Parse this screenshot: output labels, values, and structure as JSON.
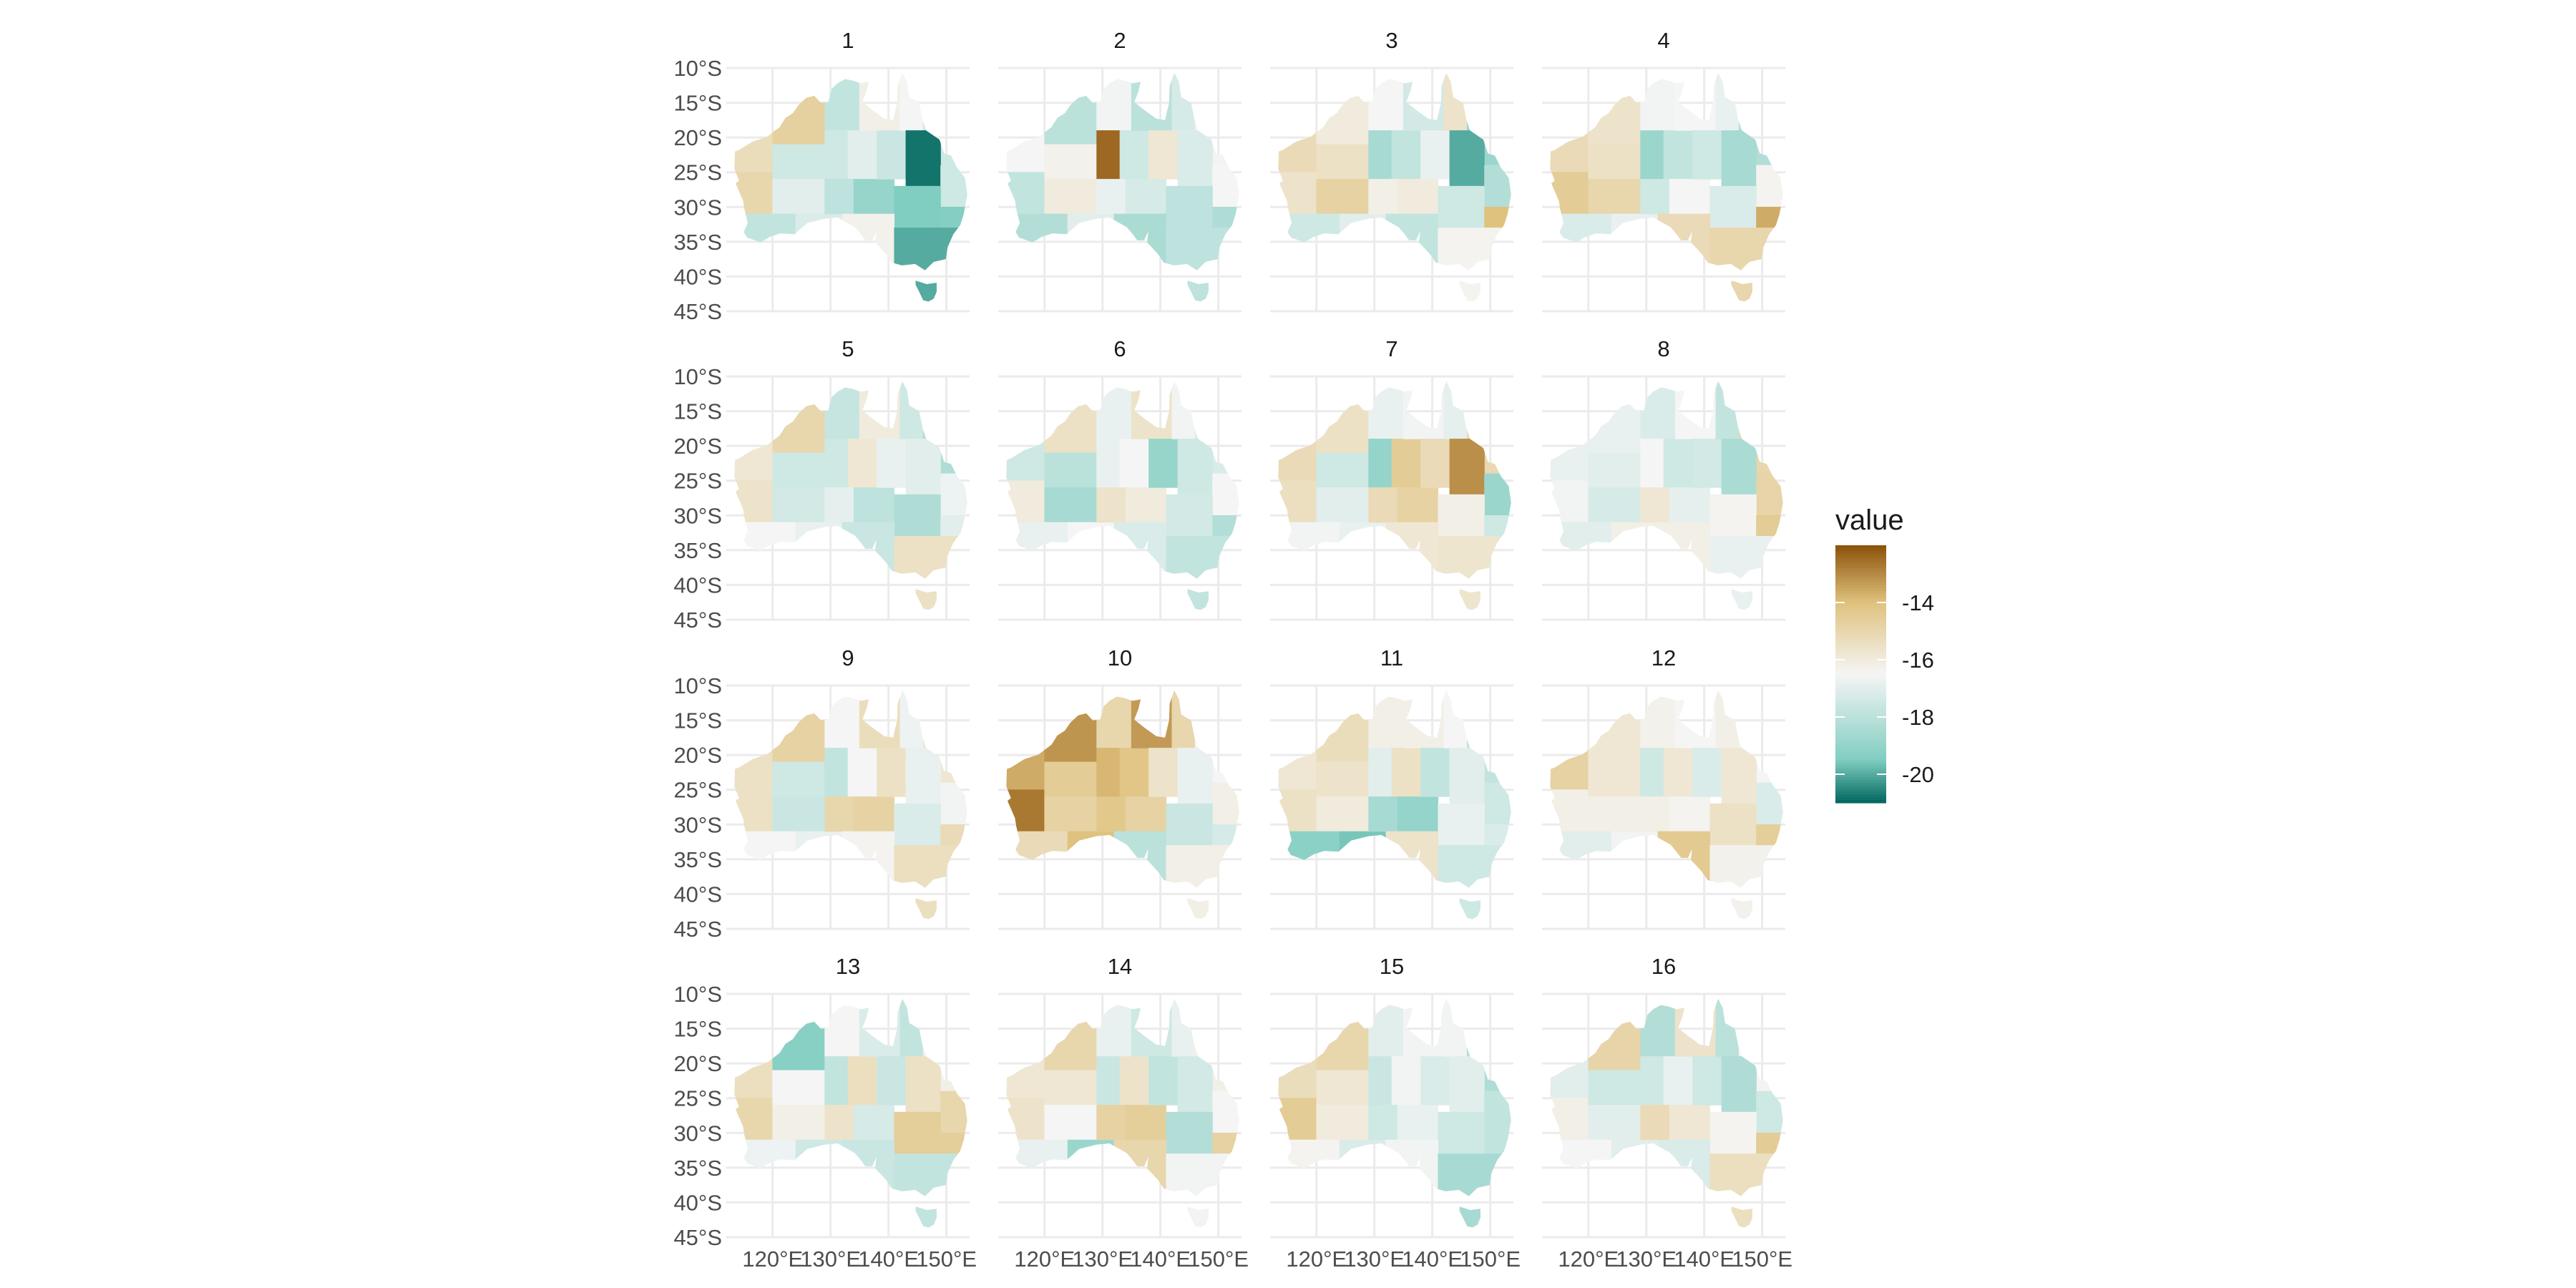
{
  "chart_data": {
    "type": "heatmap",
    "kind": "faceted choropleth map of Australia",
    "panels": [
      "1",
      "2",
      "3",
      "4",
      "5",
      "6",
      "7",
      "8",
      "9",
      "10",
      "11",
      "12",
      "13",
      "14",
      "15",
      "16"
    ],
    "layout": {
      "rows": 4,
      "cols": 4
    },
    "x_ticks": [
      "120°E",
      "130°E",
      "140°E",
      "150°E"
    ],
    "y_ticks": [
      "10°S",
      "15°S",
      "20°S",
      "25°S",
      "30°S",
      "35°S",
      "40°S",
      "45°S"
    ],
    "x_values": [
      120,
      130,
      140,
      150
    ],
    "y_values": [
      -10,
      -15,
      -20,
      -25,
      -30,
      -35,
      -40,
      -45
    ],
    "xlim": [
      112,
      154
    ],
    "ylim": [
      -45,
      -10
    ],
    "grid": true,
    "legend": {
      "title": "value",
      "position": "right",
      "labels": [
        "-14",
        "-16",
        "-18",
        "-20"
      ],
      "values": [
        -14,
        -16,
        -18,
        -20
      ],
      "range": [
        -21,
        -12
      ]
    },
    "colors": {
      "high": "#8c510a",
      "mid_high": "#dfc27d",
      "mid": "#f5f5f5",
      "mid_low": "#80cdc1",
      "low": "#01665e"
    },
    "region_values": [
      [
        -15.3,
        -15.0,
        -14.7,
        -17.5,
        -17.0,
        -17.8,
        -17.2,
        -17.8,
        -17.5,
        -17.0,
        -16.2,
        -17.9,
        -18.9,
        -17.6,
        -16.5,
        -17.5,
        -20.8,
        -17.5,
        -19.5,
        -16.3,
        -19.4,
        -20.0
      ],
      [
        -16.5,
        -17.8,
        -18.0,
        -16.3,
        -16.0,
        -18.2,
        -17.0,
        -16.6,
        -12.4,
        -17.5,
        -18.0,
        -16.8,
        -17.3,
        -15.8,
        -17.3,
        -16.4,
        -17.2,
        -16.5,
        -17.9,
        -18.4,
        -18.3,
        -17.9
      ],
      [
        -15.2,
        -15.6,
        -16.0,
        -15.5,
        -14.8,
        -17.5,
        -17.0,
        -16.5,
        -18.5,
        -17.8,
        -17.4,
        -16.2,
        -16.0,
        -16.8,
        -15.6,
        -18.8,
        -20.0,
        -18.2,
        -17.5,
        -17.8,
        -14.0,
        -16.4
      ],
      [
        -15.2,
        -14.5,
        -15.6,
        -15.5,
        -15.0,
        -17.2,
        -16.8,
        -16.6,
        -18.8,
        -17.8,
        -16.5,
        -17.5,
        -16.5,
        -17.5,
        -16.8,
        -18.2,
        -18.5,
        -16.4,
        -17.2,
        -15.2,
        -13.6,
        -15.0
      ],
      [
        -15.8,
        -15.6,
        -15.0,
        -17.5,
        -17.4,
        -16.5,
        -16.8,
        -17.7,
        -17.5,
        -15.8,
        -16.0,
        -16.9,
        -17.9,
        -16.8,
        -17.5,
        -18.3,
        -17.0,
        -16.7,
        -18.3,
        -17.6,
        -17.0,
        -15.5
      ],
      [
        -17.5,
        -16.0,
        -15.5,
        -18.0,
        -18.5,
        -16.8,
        -16.5,
        -16.8,
        -16.8,
        -16.5,
        -15.6,
        -15.6,
        -16.0,
        -18.9,
        -16.6,
        -17.2,
        -17.5,
        -16.5,
        -17.4,
        -17.2,
        -18.2,
        -17.8
      ],
      [
        -15.2,
        -15.4,
        -15.5,
        -17.5,
        -17.0,
        -16.6,
        -16.8,
        -16.8,
        -19.0,
        -14.5,
        -16.6,
        -15.2,
        -14.8,
        -15.2,
        -16.9,
        -15.1,
        -13.1,
        -18.8,
        -16.2,
        -15.8,
        -17.5,
        -15.7
      ],
      [
        -16.8,
        -16.6,
        -16.8,
        -17.0,
        -17.3,
        -17.0,
        -16.2,
        -17.2,
        -16.5,
        -17.5,
        -16.5,
        -15.8,
        -16.9,
        -17.4,
        -17.8,
        -15.0,
        -18.4,
        -14.9,
        -16.4,
        -16.2,
        -14.5,
        -16.8
      ],
      [
        -15.5,
        -15.5,
        -14.8,
        -17.5,
        -17.6,
        -16.5,
        -16.8,
        -16.5,
        -17.8,
        -16.5,
        -15.3,
        -15.0,
        -14.8,
        -15.5,
        -16.7,
        -15.8,
        -16.8,
        -16.6,
        -17.2,
        -16.4,
        -15.2,
        -15.4
      ],
      [
        -13.6,
        -12.7,
        -13.2,
        -14.5,
        -14.8,
        -15.2,
        -14.0,
        -15.0,
        -13.8,
        -14.2,
        -13.3,
        -14.3,
        -14.8,
        -15.6,
        -15.0,
        -16.5,
        -16.8,
        -16.2,
        -17.6,
        -18.0,
        -17.3,
        -16.2
      ],
      [
        -15.8,
        -15.5,
        -15.3,
        -15.6,
        -16.0,
        -19.2,
        -19.6,
        -16.2,
        -17.0,
        -15.5,
        -16.2,
        -18.5,
        -19.0,
        -17.8,
        -16.5,
        -17.8,
        -17.0,
        -17.5,
        -16.8,
        -15.6,
        -17.2,
        -17.5
      ],
      [
        -14.8,
        -16.2,
        -15.8,
        -15.8,
        -16.2,
        -17.0,
        -16.6,
        -16.3,
        -17.5,
        -15.8,
        -16.5,
        -16.2,
        -16.4,
        -17.2,
        -16.2,
        -16.5,
        -15.8,
        -17.2,
        -15.5,
        -14.4,
        -14.6,
        -16.3
      ],
      [
        -15.4,
        -15.0,
        -19.3,
        -16.5,
        -16.2,
        -16.7,
        -17.5,
        -16.5,
        -17.8,
        -15.4,
        -17.2,
        -15.6,
        -17.3,
        -17.6,
        -17.8,
        -16.2,
        -15.5,
        -15.0,
        -14.6,
        -17.6,
        -14.6,
        -17.8
      ],
      [
        -15.8,
        -15.6,
        -15.0,
        -15.8,
        -16.5,
        -16.8,
        -18.8,
        -16.8,
        -17.6,
        -15.6,
        -17.5,
        -14.8,
        -14.6,
        -17.8,
        -16.8,
        -16.2,
        -17.4,
        -16.5,
        -18.2,
        -15.0,
        -14.8,
        -16.6
      ],
      [
        -15.3,
        -14.5,
        -15.0,
        -15.8,
        -16.0,
        -16.4,
        -17.2,
        -17.0,
        -17.6,
        -16.6,
        -16.6,
        -17.5,
        -16.8,
        -17.2,
        -16.6,
        -18.3,
        -17.0,
        -17.8,
        -17.5,
        -16.6,
        -17.8,
        -18.5
      ],
      [
        -17.0,
        -16.2,
        -14.9,
        -17.5,
        -17.0,
        -16.5,
        -17.0,
        -18.2,
        -17.5,
        -16.8,
        -15.6,
        -15.2,
        -15.8,
        -17.5,
        -18.0,
        -16.4,
        -18.3,
        -17.5,
        -16.4,
        -17.2,
        -14.5,
        -15.4
      ]
    ]
  }
}
